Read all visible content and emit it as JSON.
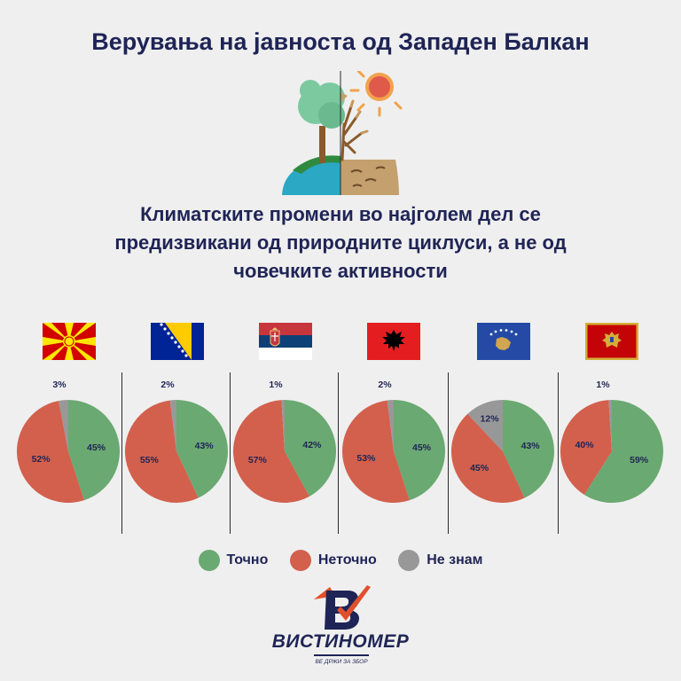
{
  "title": "Верувања на јавноста од Западен Балкан",
  "question": "Климатските промени во најголем дел се предизвикани од природните циклуси, а не од човечките активности",
  "colors": {
    "true": "#6aa971",
    "false": "#d2604d",
    "dont_know": "#989898",
    "text": "#1f2456"
  },
  "legend": [
    {
      "label": "Точно",
      "color": "#6aa971"
    },
    {
      "label": "Неточно",
      "color": "#d2604d"
    },
    {
      "label": "Не знам",
      "color": "#989898"
    }
  ],
  "chart_data": {
    "type": "pie",
    "series_names": [
      "Точно",
      "Неточно",
      "Не знам"
    ],
    "charts": [
      {
        "flag": "north-macedonia-flag",
        "labels": [
          "45%",
          "52%",
          "3%"
        ],
        "values": [
          45,
          52,
          3
        ]
      },
      {
        "flag": "bosnia-flag",
        "labels": [
          "43%",
          "55%",
          "2%"
        ],
        "values": [
          43,
          55,
          2
        ]
      },
      {
        "flag": "serbia-flag",
        "labels": [
          "42%",
          "57%",
          "1%"
        ],
        "values": [
          42,
          57,
          1
        ]
      },
      {
        "flag": "albania-flag",
        "labels": [
          "45%",
          "53%",
          "2%"
        ],
        "values": [
          45,
          53,
          2
        ]
      },
      {
        "flag": "kosovo-flag",
        "labels": [
          "43%",
          "45%",
          "12%"
        ],
        "values": [
          43,
          45,
          12
        ]
      },
      {
        "flag": "montenegro-flag",
        "labels": [
          "59%",
          "40%",
          "1%"
        ],
        "values": [
          59,
          40,
          1
        ]
      }
    ]
  },
  "logo": {
    "name": "ВИСТИНОМЕР",
    "tagline": "ВЕ ДРЖИ ЗА ЗБОР"
  }
}
